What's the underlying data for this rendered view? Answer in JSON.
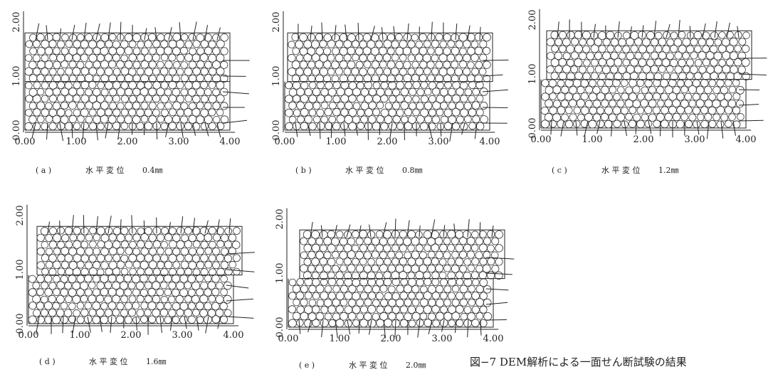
{
  "panels": [
    {
      "caption": {
        "label": "( a )",
        "text": "水 平 変 位",
        "value": "0.4㎜"
      },
      "xticks": [
        "0.00",
        "1.00",
        "2.00",
        "3.00",
        "4.00"
      ],
      "yticks": [
        "0.00",
        "1.00",
        "2.00"
      ]
    },
    {
      "caption": {
        "label": "( b )",
        "text": "水 平 変 位",
        "value": "0.8㎜"
      },
      "xticks": [
        "0.00",
        "1.00",
        "2.00",
        "3.00",
        "4.00"
      ],
      "yticks": [
        "0.00",
        "1.00",
        "2.00"
      ]
    },
    {
      "caption": {
        "label": "( c )",
        "text": "水 平 変 位",
        "value": "1.2㎜"
      },
      "xticks": [
        "0.00",
        "1.00",
        "2.00",
        "3.00",
        "4.00"
      ],
      "yticks": [
        "0.00",
        "1.00",
        "2.00"
      ]
    },
    {
      "caption": {
        "label": "( d )",
        "text": "水 平 変 位",
        "value": "1.6㎜"
      },
      "xticks": [
        "0.00",
        "1.00",
        "2.00",
        "3.00",
        "4.00"
      ],
      "yticks": [
        "0.00",
        "1.00",
        "2.00"
      ]
    },
    {
      "caption": {
        "label": "( e )",
        "text": "水 平 変 位",
        "value": "2.0㎜"
      },
      "xticks": [
        "0.00",
        "1.00",
        "2.00",
        "3.00",
        "4.00"
      ],
      "yticks": [
        "0.00",
        "1.00",
        "2.00"
      ]
    }
  ],
  "figure_caption": "図−7 DEM解析による一面せん断試験の結果"
}
